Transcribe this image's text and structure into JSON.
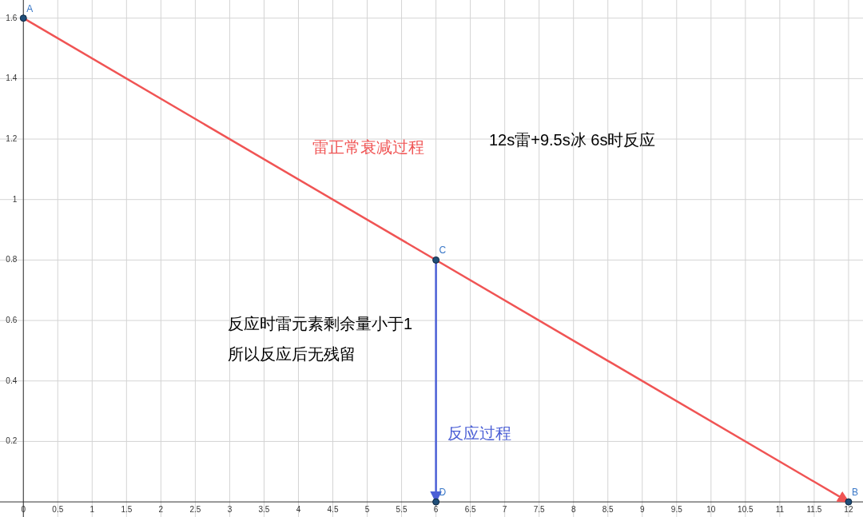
{
  "chart_data": {
    "type": "line",
    "series": [
      {
        "name": "雷正常衰减过程",
        "color": "#f05454",
        "x": [
          0,
          12
        ],
        "values": [
          1.6,
          0
        ]
      },
      {
        "name": "反应过程",
        "color": "#4b5fd6",
        "x": [
          6,
          6
        ],
        "values": [
          0.8,
          0
        ]
      },
      {
        "type": "scatter",
        "marker": "circle",
        "color": "#1f4e79",
        "x": [
          0,
          12,
          6,
          6
        ],
        "values": [
          1.6,
          0,
          0.8,
          0
        ]
      }
    ],
    "annotations": [
      {
        "text": "A",
        "x": 0,
        "y": 1.6
      },
      {
        "text": "B",
        "x": 12,
        "y": 0
      },
      {
        "text": "C",
        "x": 6,
        "y": 0.8
      },
      {
        "text": "D",
        "x": 6,
        "y": 0
      },
      "12s雷+9.5s冰 6s时反应",
      "反应时雷元素剩余量小于1",
      "所以反应后无残留"
    ],
    "xlim": [
      -0.34,
      12.21
    ],
    "ylim": [
      -0.05,
      1.66
    ],
    "xticks": [
      0,
      0.5,
      1,
      1.5,
      2,
      2.5,
      3,
      3.5,
      4,
      4.5,
      5,
      5.5,
      6,
      6.5,
      7,
      7.5,
      8,
      8.5,
      9,
      9.5,
      10,
      10.5,
      11,
      11.5,
      12
    ],
    "yticks": [
      0.2,
      0.4,
      0.6,
      0.8,
      1,
      1.2,
      1.4,
      1.6
    ],
    "grid": true,
    "line_style": "solid"
  }
}
